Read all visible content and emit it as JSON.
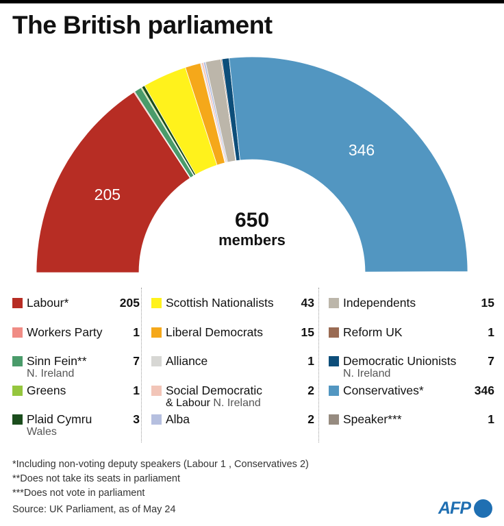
{
  "title": "The British parliament",
  "center": {
    "total": "650",
    "label": "members"
  },
  "chart_data": {
    "type": "pie",
    "subtype": "half-donut",
    "total": 650,
    "slices": [
      {
        "party": "Labour",
        "seats": 205,
        "color": "#b72d24",
        "label": "205"
      },
      {
        "party": "Workers Party",
        "seats": 1,
        "color": "#f08c85"
      },
      {
        "party": "Sinn Fein",
        "seats": 7,
        "color": "#4a9b6a"
      },
      {
        "party": "Greens",
        "seats": 1,
        "color": "#95c63e"
      },
      {
        "party": "Plaid Cymru",
        "seats": 3,
        "color": "#1b4d1d"
      },
      {
        "party": "Scottish Nationalists",
        "seats": 43,
        "color": "#fff21c"
      },
      {
        "party": "Liberal Democrats",
        "seats": 15,
        "color": "#f5a81a"
      },
      {
        "party": "Alliance",
        "seats": 1,
        "color": "#d7d7d4"
      },
      {
        "party": "Social Democratic & Labour",
        "seats": 2,
        "color": "#f2c5b8"
      },
      {
        "party": "Alba",
        "seats": 2,
        "color": "#b5bfdf"
      },
      {
        "party": "Independents",
        "seats": 15,
        "color": "#bcb6aa"
      },
      {
        "party": "Reform UK",
        "seats": 1,
        "color": "#9a6b53"
      },
      {
        "party": "Democratic Unionists",
        "seats": 7,
        "color": "#0d4e7a"
      },
      {
        "party": "Conservatives",
        "seats": 346,
        "color": "#5296c1",
        "label": "346"
      }
    ]
  },
  "legend": {
    "col1": [
      {
        "name": "Labour*",
        "seats": "205",
        "color": "#b72d24"
      },
      {
        "name": "Workers Party",
        "seats": "1",
        "color": "#f08c85"
      },
      {
        "name": "Sinn Fein**",
        "sub": "N. Ireland",
        "seats": "7",
        "color": "#4a9b6a"
      },
      {
        "name": "Greens",
        "seats": "1",
        "color": "#95c63e"
      },
      {
        "name": "Plaid Cymru",
        "sub": "Wales",
        "seats": "3",
        "color": "#1b4d1d"
      }
    ],
    "col2": [
      {
        "name": "Scottish Nationalists",
        "seats": "43",
        "color": "#fff21c"
      },
      {
        "name": "Liberal Democrats",
        "seats": "15",
        "color": "#f5a81a"
      },
      {
        "name": "Alliance",
        "seats": "1",
        "color": "#d7d7d4"
      },
      {
        "name": "Social Democratic",
        "name2": "& Labour",
        "sub": "N. Ireland",
        "seats": "2",
        "color": "#f2c5b8"
      },
      {
        "name": "Alba",
        "seats": "2",
        "color": "#b5bfdf"
      }
    ],
    "col3": [
      {
        "name": "Independents",
        "seats": "15",
        "color": "#bcb6aa"
      },
      {
        "name": "Reform UK",
        "seats": "1",
        "color": "#9a6b53"
      },
      {
        "name": "Democratic Unionists",
        "sub": "N. Ireland",
        "seats": "7",
        "color": "#0d4e7a"
      },
      {
        "name": "Conservatives*",
        "seats": "346",
        "color": "#5296c1"
      },
      {
        "name": "Speaker***",
        "seats": "1",
        "color": "#968b80"
      }
    ]
  },
  "notes": [
    "*Including non-voting deputy speakers (Labour 1 , Conservatives 2)",
    "**Does not take its seats in parliament",
    "***Does not vote in parliament"
  ],
  "source": "Source: UK Parliament, as of May 24",
  "logo": {
    "text": "AFP"
  }
}
